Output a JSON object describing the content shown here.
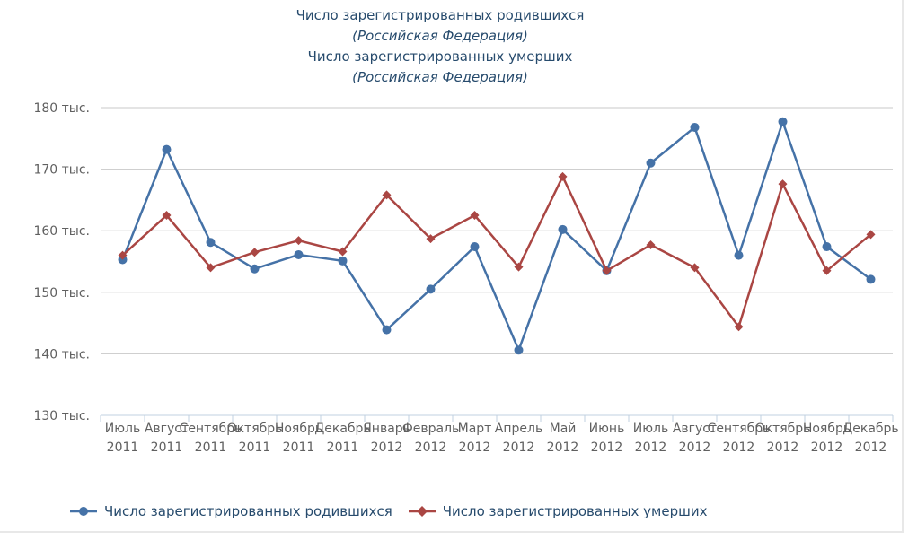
{
  "chart_data": {
    "type": "line",
    "titles": [
      "Число зарегистрированных родившихся",
      "(Российская Федерация)",
      "Число зарегистрированных умерших",
      "(Российская Федерация)"
    ],
    "categories": [
      [
        "Июль",
        "2011"
      ],
      [
        "Август",
        "2011"
      ],
      [
        "Сентябрь",
        "2011"
      ],
      [
        "Октябрь",
        "2011"
      ],
      [
        "Ноябрь",
        "2011"
      ],
      [
        "Декабрь",
        "2011"
      ],
      [
        "Январь",
        "2012"
      ],
      [
        "Февраль",
        "2012"
      ],
      [
        "Март",
        "2012"
      ],
      [
        "Апрель",
        "2012"
      ],
      [
        "Май",
        "2012"
      ],
      [
        "Июнь",
        "2012"
      ],
      [
        "Июль",
        "2012"
      ],
      [
        "Август",
        "2012"
      ],
      [
        "Сентябрь",
        "2012"
      ],
      [
        "Октябрь",
        "2012"
      ],
      [
        "Ноябрь",
        "2012"
      ],
      [
        "Декабрь",
        "2012"
      ]
    ],
    "y_ticks": [
      {
        "value": 130,
        "label": "130 тыс."
      },
      {
        "value": 140,
        "label": "140 тыс."
      },
      {
        "value": 150,
        "label": "150 тыс."
      },
      {
        "value": 160,
        "label": "160 тыс."
      },
      {
        "value": 170,
        "label": "170 тыс."
      },
      {
        "value": 180,
        "label": "180 тыс."
      }
    ],
    "ylim": [
      130,
      180
    ],
    "grid": true,
    "legend_position": "bottom-left",
    "series": [
      {
        "name": "Число зарегистрированных родившихся",
        "color": "#4572a7",
        "marker": "circle",
        "values": [
          155.3,
          173.2,
          158.1,
          153.8,
          156.1,
          155.1,
          143.9,
          150.5,
          157.4,
          140.6,
          160.2,
          153.5,
          171.0,
          176.8,
          156.0,
          177.7,
          157.4,
          152.1
        ]
      },
      {
        "name": "Число зарегистрированных умерших",
        "color": "#aa4643",
        "marker": "diamond",
        "values": [
          156.0,
          162.5,
          154.0,
          156.5,
          158.4,
          156.6,
          165.8,
          158.7,
          162.5,
          154.1,
          168.8,
          153.5,
          157.7,
          154.0,
          144.4,
          167.6,
          153.5,
          159.4
        ]
      }
    ]
  }
}
